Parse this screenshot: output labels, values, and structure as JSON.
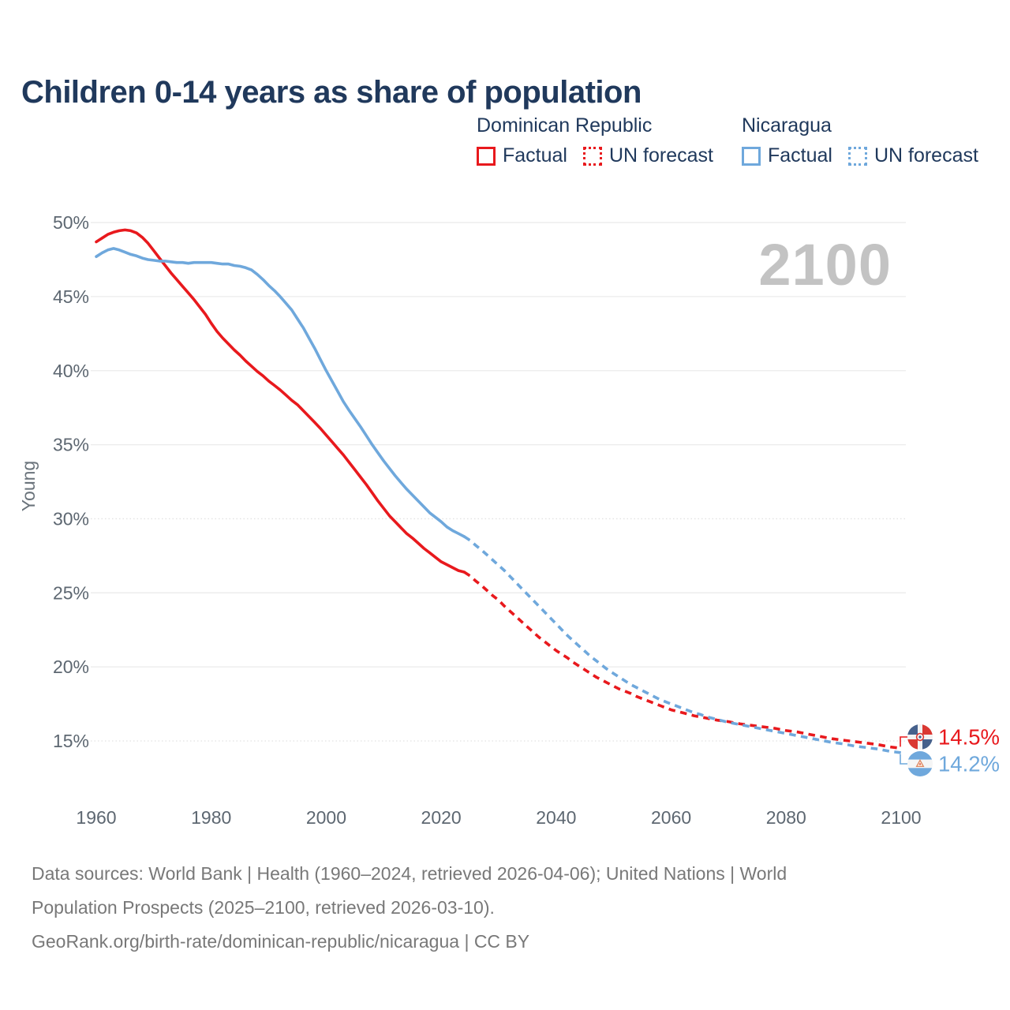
{
  "page": {
    "title": "Children 0-14 years as share of population"
  },
  "watermark": "2100",
  "legend": {
    "groups": [
      {
        "name": "Dominican Republic",
        "color": "#e8191d",
        "items": [
          {
            "label": "Factual",
            "style": "solid"
          },
          {
            "label": "UN forecast",
            "style": "dotted"
          }
        ]
      },
      {
        "name": "Nicaragua",
        "color": "#6fa8dc",
        "items": [
          {
            "label": "Factual",
            "style": "solid"
          },
          {
            "label": "UN forecast",
            "style": "dotted"
          }
        ]
      }
    ]
  },
  "chart_data": {
    "type": "line",
    "title": "Children 0-14 years as share of population",
    "xlabel": "",
    "ylabel": "Young",
    "xlim": [
      1956,
      2115
    ],
    "ylim": [
      13,
      51
    ],
    "x_ticks": [
      1960,
      1980,
      2000,
      2020,
      2040,
      2060,
      2080,
      2100
    ],
    "y_ticks": [
      50,
      45,
      40,
      35,
      30,
      25,
      20,
      15
    ],
    "y_tick_suffix": "%",
    "grid": true,
    "dotted_gridlines": [
      30,
      15
    ],
    "legend_position": "top-right",
    "series": [
      {
        "name": "Dominican Republic — Factual",
        "slug": "dr-factual",
        "color": "#e8191d",
        "dash": false,
        "points": [
          [
            1960,
            48.7
          ],
          [
            1961,
            48.95
          ],
          [
            1962,
            49.2
          ],
          [
            1963,
            49.35
          ],
          [
            1964,
            49.45
          ],
          [
            1965,
            49.5
          ],
          [
            1966,
            49.45
          ],
          [
            1967,
            49.3
          ],
          [
            1968,
            49.0
          ],
          [
            1969,
            48.6
          ],
          [
            1970,
            48.1
          ],
          [
            1971,
            47.6
          ],
          [
            1972,
            47.1
          ],
          [
            1973,
            46.6
          ],
          [
            1974,
            46.15
          ],
          [
            1975,
            45.7
          ],
          [
            1976,
            45.25
          ],
          [
            1977,
            44.8
          ],
          [
            1978,
            44.3
          ],
          [
            1979,
            43.8
          ],
          [
            1980,
            43.2
          ],
          [
            1981,
            42.65
          ],
          [
            1982,
            42.2
          ],
          [
            1983,
            41.8
          ],
          [
            1984,
            41.4
          ],
          [
            1985,
            41.05
          ],
          [
            1986,
            40.65
          ],
          [
            1987,
            40.3
          ],
          [
            1988,
            39.95
          ],
          [
            1989,
            39.65
          ],
          [
            1990,
            39.3
          ],
          [
            1991,
            39.0
          ],
          [
            1992,
            38.7
          ],
          [
            1993,
            38.35
          ],
          [
            1994,
            38.0
          ],
          [
            1995,
            37.7
          ],
          [
            1996,
            37.3
          ],
          [
            1997,
            36.9
          ],
          [
            1998,
            36.5
          ],
          [
            1999,
            36.1
          ],
          [
            2000,
            35.65
          ],
          [
            2001,
            35.2
          ],
          [
            2002,
            34.75
          ],
          [
            2003,
            34.3
          ],
          [
            2004,
            33.8
          ],
          [
            2005,
            33.3
          ],
          [
            2006,
            32.8
          ],
          [
            2007,
            32.3
          ],
          [
            2008,
            31.75
          ],
          [
            2009,
            31.2
          ],
          [
            2010,
            30.7
          ],
          [
            2011,
            30.2
          ],
          [
            2012,
            29.8
          ],
          [
            2013,
            29.4
          ],
          [
            2014,
            29.0
          ],
          [
            2015,
            28.7
          ],
          [
            2016,
            28.35
          ],
          [
            2017,
            28.0
          ],
          [
            2018,
            27.7
          ],
          [
            2019,
            27.4
          ],
          [
            2020,
            27.1
          ],
          [
            2021,
            26.9
          ],
          [
            2022,
            26.7
          ],
          [
            2023,
            26.5
          ],
          [
            2024,
            26.4
          ]
        ]
      },
      {
        "name": "Dominican Republic — UN forecast",
        "slug": "dr-forecast",
        "color": "#e8191d",
        "dash": true,
        "points": [
          [
            2024,
            26.4
          ],
          [
            2025,
            26.15
          ],
          [
            2026,
            25.8
          ],
          [
            2027,
            25.5
          ],
          [
            2028,
            25.15
          ],
          [
            2029,
            24.8
          ],
          [
            2030,
            24.5
          ],
          [
            2031,
            24.1
          ],
          [
            2032,
            23.75
          ],
          [
            2033,
            23.4
          ],
          [
            2034,
            23.05
          ],
          [
            2035,
            22.7
          ],
          [
            2036,
            22.35
          ],
          [
            2037,
            22.0
          ],
          [
            2038,
            21.7
          ],
          [
            2039,
            21.4
          ],
          [
            2040,
            21.1
          ],
          [
            2041,
            20.85
          ],
          [
            2042,
            20.6
          ],
          [
            2043,
            20.3
          ],
          [
            2044,
            20.05
          ],
          [
            2045,
            19.8
          ],
          [
            2046,
            19.55
          ],
          [
            2047,
            19.3
          ],
          [
            2048,
            19.1
          ],
          [
            2049,
            18.9
          ],
          [
            2050,
            18.7
          ],
          [
            2051,
            18.5
          ],
          [
            2052,
            18.35
          ],
          [
            2053,
            18.2
          ],
          [
            2054,
            18.0
          ],
          [
            2055,
            17.85
          ],
          [
            2056,
            17.7
          ],
          [
            2057,
            17.55
          ],
          [
            2058,
            17.4
          ],
          [
            2059,
            17.25
          ],
          [
            2060,
            17.1
          ],
          [
            2062,
            16.9
          ],
          [
            2064,
            16.7
          ],
          [
            2066,
            16.55
          ],
          [
            2068,
            16.4
          ],
          [
            2070,
            16.3
          ],
          [
            2072,
            16.15
          ],
          [
            2074,
            16.05
          ],
          [
            2076,
            15.95
          ],
          [
            2078,
            15.85
          ],
          [
            2080,
            15.7
          ],
          [
            2082,
            15.6
          ],
          [
            2084,
            15.45
          ],
          [
            2086,
            15.3
          ],
          [
            2088,
            15.15
          ],
          [
            2090,
            15.05
          ],
          [
            2092,
            14.95
          ],
          [
            2094,
            14.85
          ],
          [
            2096,
            14.75
          ],
          [
            2098,
            14.6
          ],
          [
            2100,
            14.5
          ]
        ]
      },
      {
        "name": "Nicaragua — Factual",
        "slug": "nic-factual",
        "color": "#6fa8dc",
        "dash": false,
        "points": [
          [
            1960,
            47.7
          ],
          [
            1961,
            47.95
          ],
          [
            1962,
            48.15
          ],
          [
            1963,
            48.25
          ],
          [
            1964,
            48.15
          ],
          [
            1965,
            48.0
          ],
          [
            1966,
            47.85
          ],
          [
            1967,
            47.75
          ],
          [
            1968,
            47.6
          ],
          [
            1969,
            47.5
          ],
          [
            1970,
            47.45
          ],
          [
            1971,
            47.4
          ],
          [
            1972,
            47.4
          ],
          [
            1973,
            47.35
          ],
          [
            1974,
            47.3
          ],
          [
            1975,
            47.3
          ],
          [
            1976,
            47.25
          ],
          [
            1977,
            47.3
          ],
          [
            1978,
            47.3
          ],
          [
            1979,
            47.3
          ],
          [
            1980,
            47.3
          ],
          [
            1981,
            47.25
          ],
          [
            1982,
            47.2
          ],
          [
            1983,
            47.2
          ],
          [
            1984,
            47.1
          ],
          [
            1985,
            47.05
          ],
          [
            1986,
            46.95
          ],
          [
            1987,
            46.8
          ],
          [
            1988,
            46.5
          ],
          [
            1989,
            46.15
          ],
          [
            1990,
            45.75
          ],
          [
            1991,
            45.4
          ],
          [
            1992,
            45.0
          ],
          [
            1993,
            44.55
          ],
          [
            1994,
            44.1
          ],
          [
            1995,
            43.5
          ],
          [
            1996,
            42.9
          ],
          [
            1997,
            42.2
          ],
          [
            1998,
            41.5
          ],
          [
            1999,
            40.75
          ],
          [
            2000,
            40.0
          ],
          [
            2001,
            39.3
          ],
          [
            2002,
            38.6
          ],
          [
            2003,
            37.9
          ],
          [
            2004,
            37.3
          ],
          [
            2005,
            36.75
          ],
          [
            2006,
            36.2
          ],
          [
            2007,
            35.6
          ],
          [
            2008,
            35.0
          ],
          [
            2009,
            34.45
          ],
          [
            2010,
            33.9
          ],
          [
            2011,
            33.4
          ],
          [
            2012,
            32.9
          ],
          [
            2013,
            32.45
          ],
          [
            2014,
            32.0
          ],
          [
            2015,
            31.6
          ],
          [
            2016,
            31.2
          ],
          [
            2017,
            30.8
          ],
          [
            2018,
            30.4
          ],
          [
            2019,
            30.1
          ],
          [
            2020,
            29.8
          ],
          [
            2021,
            29.45
          ],
          [
            2022,
            29.2
          ],
          [
            2023,
            29.0
          ],
          [
            2024,
            28.8
          ]
        ]
      },
      {
        "name": "Nicaragua — UN forecast",
        "slug": "nic-forecast",
        "color": "#6fa8dc",
        "dash": true,
        "points": [
          [
            2024,
            28.8
          ],
          [
            2025,
            28.55
          ],
          [
            2026,
            28.2
          ],
          [
            2027,
            27.9
          ],
          [
            2028,
            27.55
          ],
          [
            2029,
            27.2
          ],
          [
            2030,
            26.85
          ],
          [
            2031,
            26.5
          ],
          [
            2032,
            26.1
          ],
          [
            2033,
            25.7
          ],
          [
            2034,
            25.3
          ],
          [
            2035,
            24.9
          ],
          [
            2036,
            24.5
          ],
          [
            2037,
            24.1
          ],
          [
            2038,
            23.7
          ],
          [
            2039,
            23.3
          ],
          [
            2040,
            22.9
          ],
          [
            2041,
            22.5
          ],
          [
            2042,
            22.1
          ],
          [
            2043,
            21.75
          ],
          [
            2044,
            21.4
          ],
          [
            2045,
            21.05
          ],
          [
            2046,
            20.7
          ],
          [
            2047,
            20.4
          ],
          [
            2048,
            20.1
          ],
          [
            2049,
            19.8
          ],
          [
            2050,
            19.55
          ],
          [
            2051,
            19.3
          ],
          [
            2052,
            19.05
          ],
          [
            2053,
            18.8
          ],
          [
            2054,
            18.6
          ],
          [
            2055,
            18.4
          ],
          [
            2056,
            18.2
          ],
          [
            2057,
            18.0
          ],
          [
            2058,
            17.8
          ],
          [
            2059,
            17.65
          ],
          [
            2060,
            17.5
          ],
          [
            2061,
            17.35
          ],
          [
            2062,
            17.2
          ],
          [
            2063,
            17.05
          ],
          [
            2064,
            16.9
          ],
          [
            2065,
            16.8
          ],
          [
            2066,
            16.65
          ],
          [
            2068,
            16.45
          ],
          [
            2070,
            16.25
          ],
          [
            2072,
            16.1
          ],
          [
            2074,
            15.95
          ],
          [
            2076,
            15.8
          ],
          [
            2078,
            15.65
          ],
          [
            2080,
            15.5
          ],
          [
            2082,
            15.35
          ],
          [
            2084,
            15.2
          ],
          [
            2086,
            15.05
          ],
          [
            2088,
            14.9
          ],
          [
            2090,
            14.8
          ],
          [
            2092,
            14.65
          ],
          [
            2094,
            14.55
          ],
          [
            2096,
            14.45
          ],
          [
            2098,
            14.3
          ],
          [
            2100,
            14.2
          ]
        ]
      }
    ],
    "end_labels": [
      {
        "country": "Dominican Republic",
        "flag": "dominican-republic",
        "value_label": "14.5%",
        "color": "#e8191d",
        "series_index": 1
      },
      {
        "country": "Nicaragua",
        "flag": "nicaragua",
        "value_label": "14.2%",
        "color": "#6fa8dc",
        "series_index": 3
      }
    ]
  },
  "footer": {
    "lines": [
      "Data sources: World Bank | Health (1960–2024, retrieved 2026-04-06); United Nations | World",
      "Population Prospects (2025–2100, retrieved 2026-03-10).",
      "GeoRank.org/birth-rate/dominican-republic/nicaragua | CC BY"
    ]
  }
}
